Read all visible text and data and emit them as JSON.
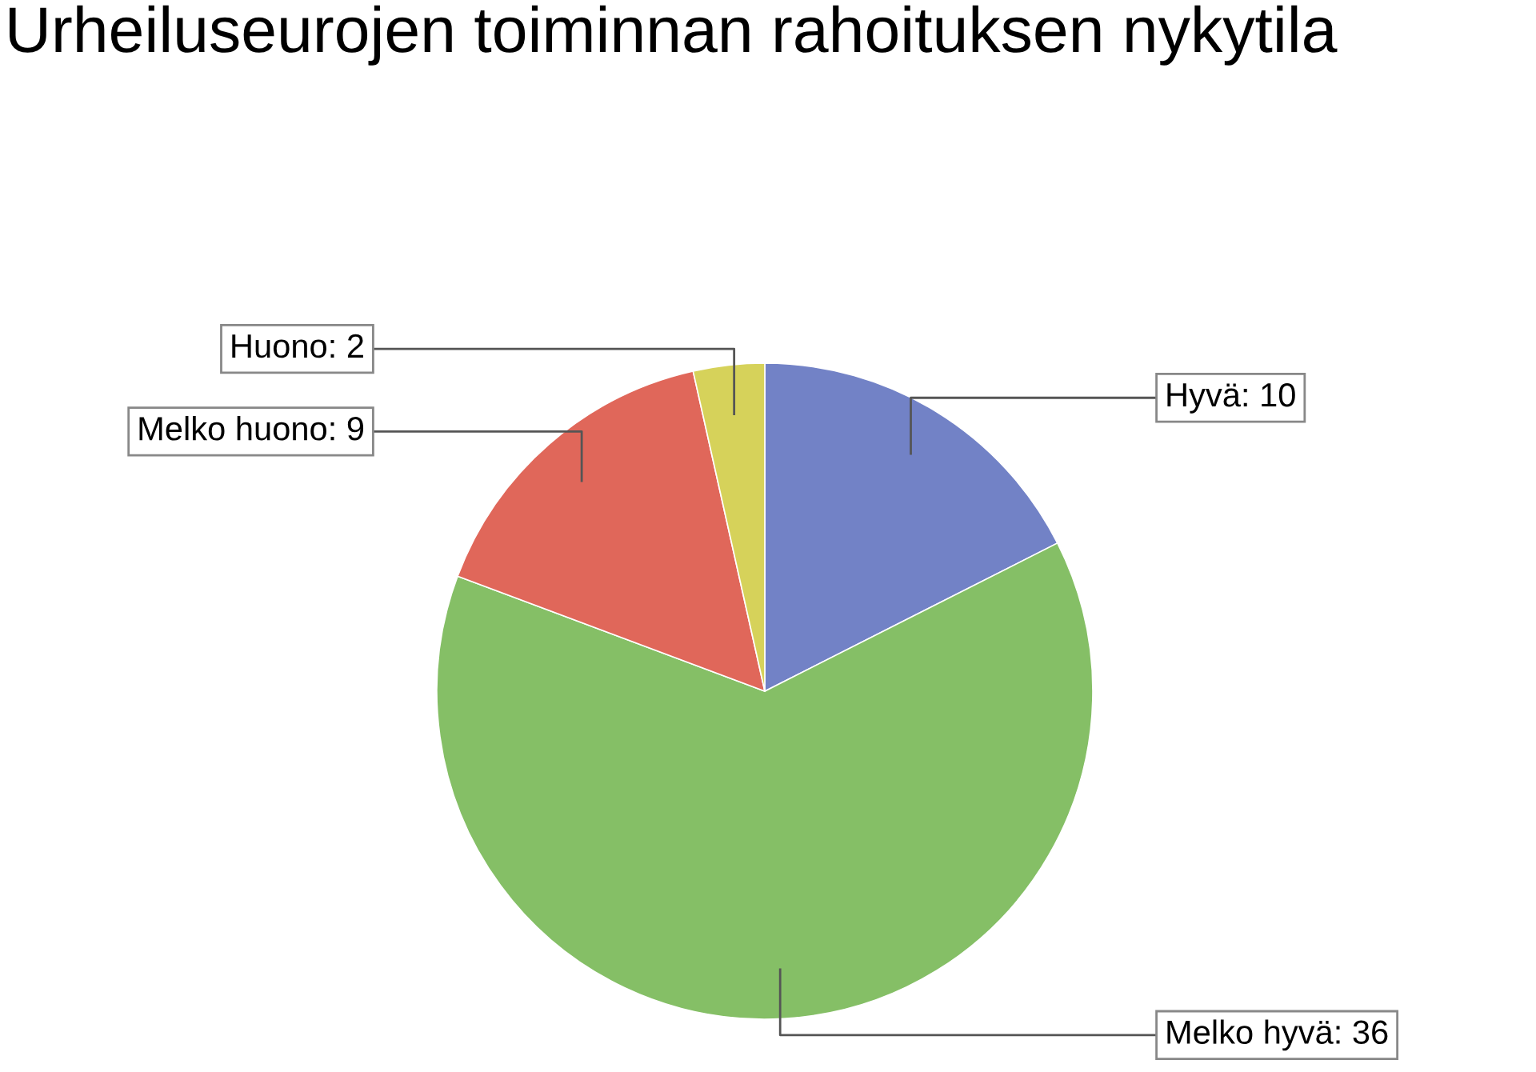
{
  "chart_data": {
    "type": "pie",
    "title": "Urheiluseurojen toiminnan rahoituksen nykytila",
    "categories": [
      "Hyvä: 10",
      "Melko hyvä: 36",
      "Melko huono: 9",
      "Huono: 2"
    ],
    "values": [
      10,
      36,
      9,
      2
    ],
    "colors": [
      "#7282c6",
      "#85bf66",
      "#e0675a",
      "#d6d25a"
    ]
  }
}
